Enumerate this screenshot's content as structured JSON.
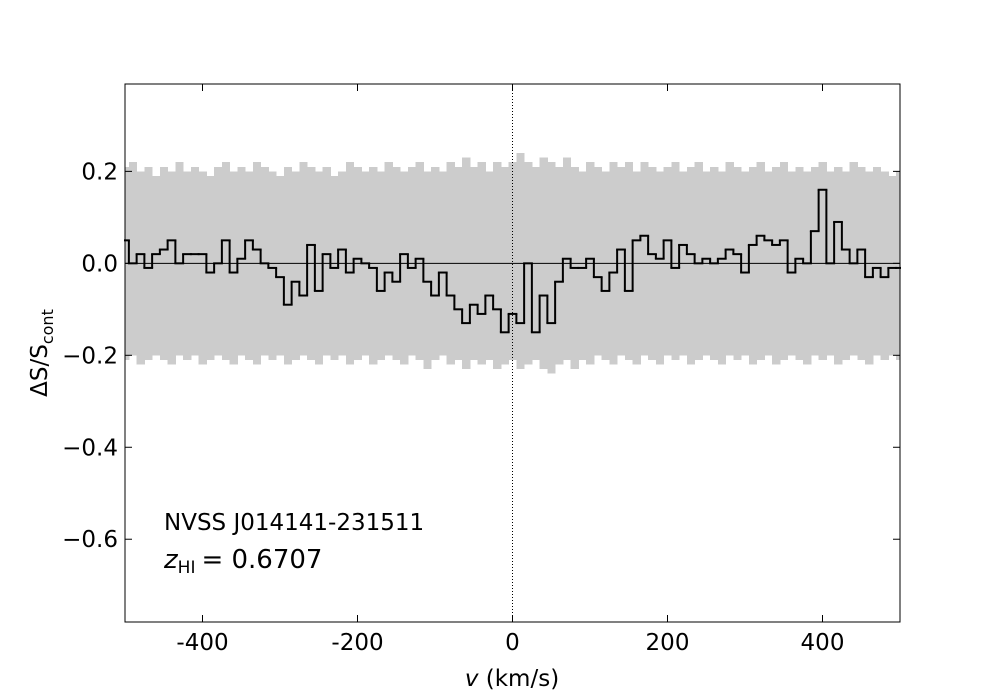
{
  "chart_data": {
    "type": "step",
    "x_label": {
      "symbol": "v",
      "unit": "(km/s)"
    },
    "y_label": {
      "main": "ΔS/S",
      "subscript": "cont"
    },
    "annotation": {
      "source": "NVSS J014141-231511",
      "z_symbol": "z",
      "z_subscript": "HI",
      "z_value": "= 0.6707"
    },
    "xlim": [
      -500,
      500
    ],
    "ylim": [
      -0.78,
      0.39
    ],
    "xticks": [
      -400,
      -200,
      0,
      200,
      400
    ],
    "yticks": [
      {
        "value": -0.6,
        "label": "−0.6"
      },
      {
        "value": -0.4,
        "label": "−0.4"
      },
      {
        "value": -0.2,
        "label": "−0.2"
      },
      {
        "value": 0,
        "label": "0.0"
      },
      0.2
    ],
    "hline": 0,
    "vline": 0,
    "line_color": "#000000",
    "x": [
      -500,
      -490,
      -480,
      -470,
      -460,
      -450,
      -440,
      -430,
      -420,
      -410,
      -400,
      -390,
      -380,
      -370,
      -360,
      -350,
      -340,
      -330,
      -320,
      -310,
      -300,
      -290,
      -280,
      -270,
      -260,
      -250,
      -240,
      -230,
      -220,
      -210,
      -200,
      -190,
      -180,
      -170,
      -160,
      -150,
      -140,
      -130,
      -120,
      -110,
      -100,
      -90,
      -80,
      -70,
      -60,
      -50,
      -40,
      -30,
      -20,
      -10,
      0,
      10,
      20,
      30,
      40,
      50,
      60,
      70,
      80,
      90,
      100,
      110,
      120,
      130,
      140,
      150,
      160,
      170,
      180,
      190,
      200,
      210,
      220,
      230,
      240,
      250,
      260,
      270,
      280,
      290,
      300,
      310,
      320,
      330,
      340,
      350,
      360,
      370,
      380,
      390,
      400,
      410,
      420,
      430,
      440,
      450,
      460,
      470,
      480,
      490,
      500
    ],
    "values": [
      0.05,
      0.0,
      0.02,
      -0.01,
      0.02,
      0.03,
      0.05,
      0.0,
      0.02,
      0.02,
      0.02,
      -0.02,
      0.0,
      0.05,
      -0.02,
      0.01,
      0.05,
      0.03,
      0.0,
      -0.01,
      -0.03,
      -0.09,
      -0.04,
      -0.07,
      0.04,
      -0.06,
      0.02,
      -0.01,
      0.03,
      -0.02,
      0.01,
      0.0,
      -0.01,
      -0.06,
      -0.02,
      -0.04,
      0.02,
      -0.01,
      0.01,
      -0.04,
      -0.07,
      -0.02,
      -0.07,
      -0.1,
      -0.13,
      -0.09,
      -0.11,
      -0.07,
      -0.1,
      -0.15,
      -0.11,
      -0.13,
      0.0,
      -0.15,
      -0.07,
      -0.13,
      -0.04,
      0.01,
      -0.01,
      -0.01,
      0.01,
      -0.03,
      -0.06,
      -0.02,
      0.03,
      -0.06,
      0.05,
      0.06,
      0.02,
      0.01,
      0.05,
      -0.01,
      0.04,
      0.02,
      0.0,
      0.01,
      0.0,
      0.01,
      0.03,
      0.02,
      -0.02,
      0.04,
      0.06,
      0.05,
      0.04,
      0.05,
      -0.02,
      0.01,
      0.0,
      0.07,
      0.16,
      0.0,
      0.09,
      0.03,
      0.0,
      0.03,
      -0.03,
      -0.01,
      -0.03,
      -0.01,
      -0.01
    ],
    "band": {
      "color": "#cccccc",
      "upper": [
        0.21,
        0.22,
        0.2,
        0.21,
        0.19,
        0.21,
        0.2,
        0.22,
        0.2,
        0.21,
        0.2,
        0.19,
        0.21,
        0.22,
        0.2,
        0.21,
        0.2,
        0.22,
        0.21,
        0.2,
        0.19,
        0.21,
        0.2,
        0.22,
        0.21,
        0.2,
        0.21,
        0.19,
        0.2,
        0.22,
        0.21,
        0.2,
        0.21,
        0.2,
        0.22,
        0.21,
        0.2,
        0.21,
        0.22,
        0.2,
        0.21,
        0.2,
        0.22,
        0.21,
        0.23,
        0.21,
        0.22,
        0.2,
        0.22,
        0.21,
        0.22,
        0.24,
        0.22,
        0.21,
        0.23,
        0.22,
        0.21,
        0.23,
        0.21,
        0.2,
        0.22,
        0.21,
        0.2,
        0.22,
        0.21,
        0.22,
        0.2,
        0.22,
        0.21,
        0.2,
        0.21,
        0.22,
        0.2,
        0.21,
        0.22,
        0.2,
        0.21,
        0.2,
        0.22,
        0.21,
        0.2,
        0.21,
        0.22,
        0.2,
        0.21,
        0.22,
        0.2,
        0.21,
        0.2,
        0.21,
        0.22,
        0.2,
        0.21,
        0.2,
        0.22,
        0.21,
        0.2,
        0.21,
        0.2,
        0.19,
        0.2
      ],
      "lower": [
        -0.21,
        -0.2,
        -0.22,
        -0.21,
        -0.2,
        -0.21,
        -0.22,
        -0.2,
        -0.21,
        -0.2,
        -0.22,
        -0.21,
        -0.2,
        -0.21,
        -0.22,
        -0.2,
        -0.21,
        -0.22,
        -0.2,
        -0.21,
        -0.2,
        -0.22,
        -0.21,
        -0.2,
        -0.21,
        -0.22,
        -0.2,
        -0.21,
        -0.2,
        -0.22,
        -0.21,
        -0.2,
        -0.22,
        -0.21,
        -0.2,
        -0.21,
        -0.22,
        -0.2,
        -0.21,
        -0.23,
        -0.21,
        -0.2,
        -0.22,
        -0.21,
        -0.23,
        -0.21,
        -0.22,
        -0.21,
        -0.23,
        -0.22,
        -0.21,
        -0.23,
        -0.22,
        -0.21,
        -0.23,
        -0.24,
        -0.22,
        -0.21,
        -0.23,
        -0.21,
        -0.22,
        -0.2,
        -0.21,
        -0.22,
        -0.2,
        -0.21,
        -0.22,
        -0.2,
        -0.21,
        -0.22,
        -0.2,
        -0.21,
        -0.2,
        -0.22,
        -0.21,
        -0.2,
        -0.21,
        -0.22,
        -0.2,
        -0.21,
        -0.2,
        -0.22,
        -0.21,
        -0.2,
        -0.22,
        -0.21,
        -0.2,
        -0.21,
        -0.22,
        -0.2,
        -0.21,
        -0.2,
        -0.22,
        -0.21,
        -0.2,
        -0.21,
        -0.22,
        -0.2,
        -0.21,
        -0.2,
        -0.21
      ]
    }
  }
}
